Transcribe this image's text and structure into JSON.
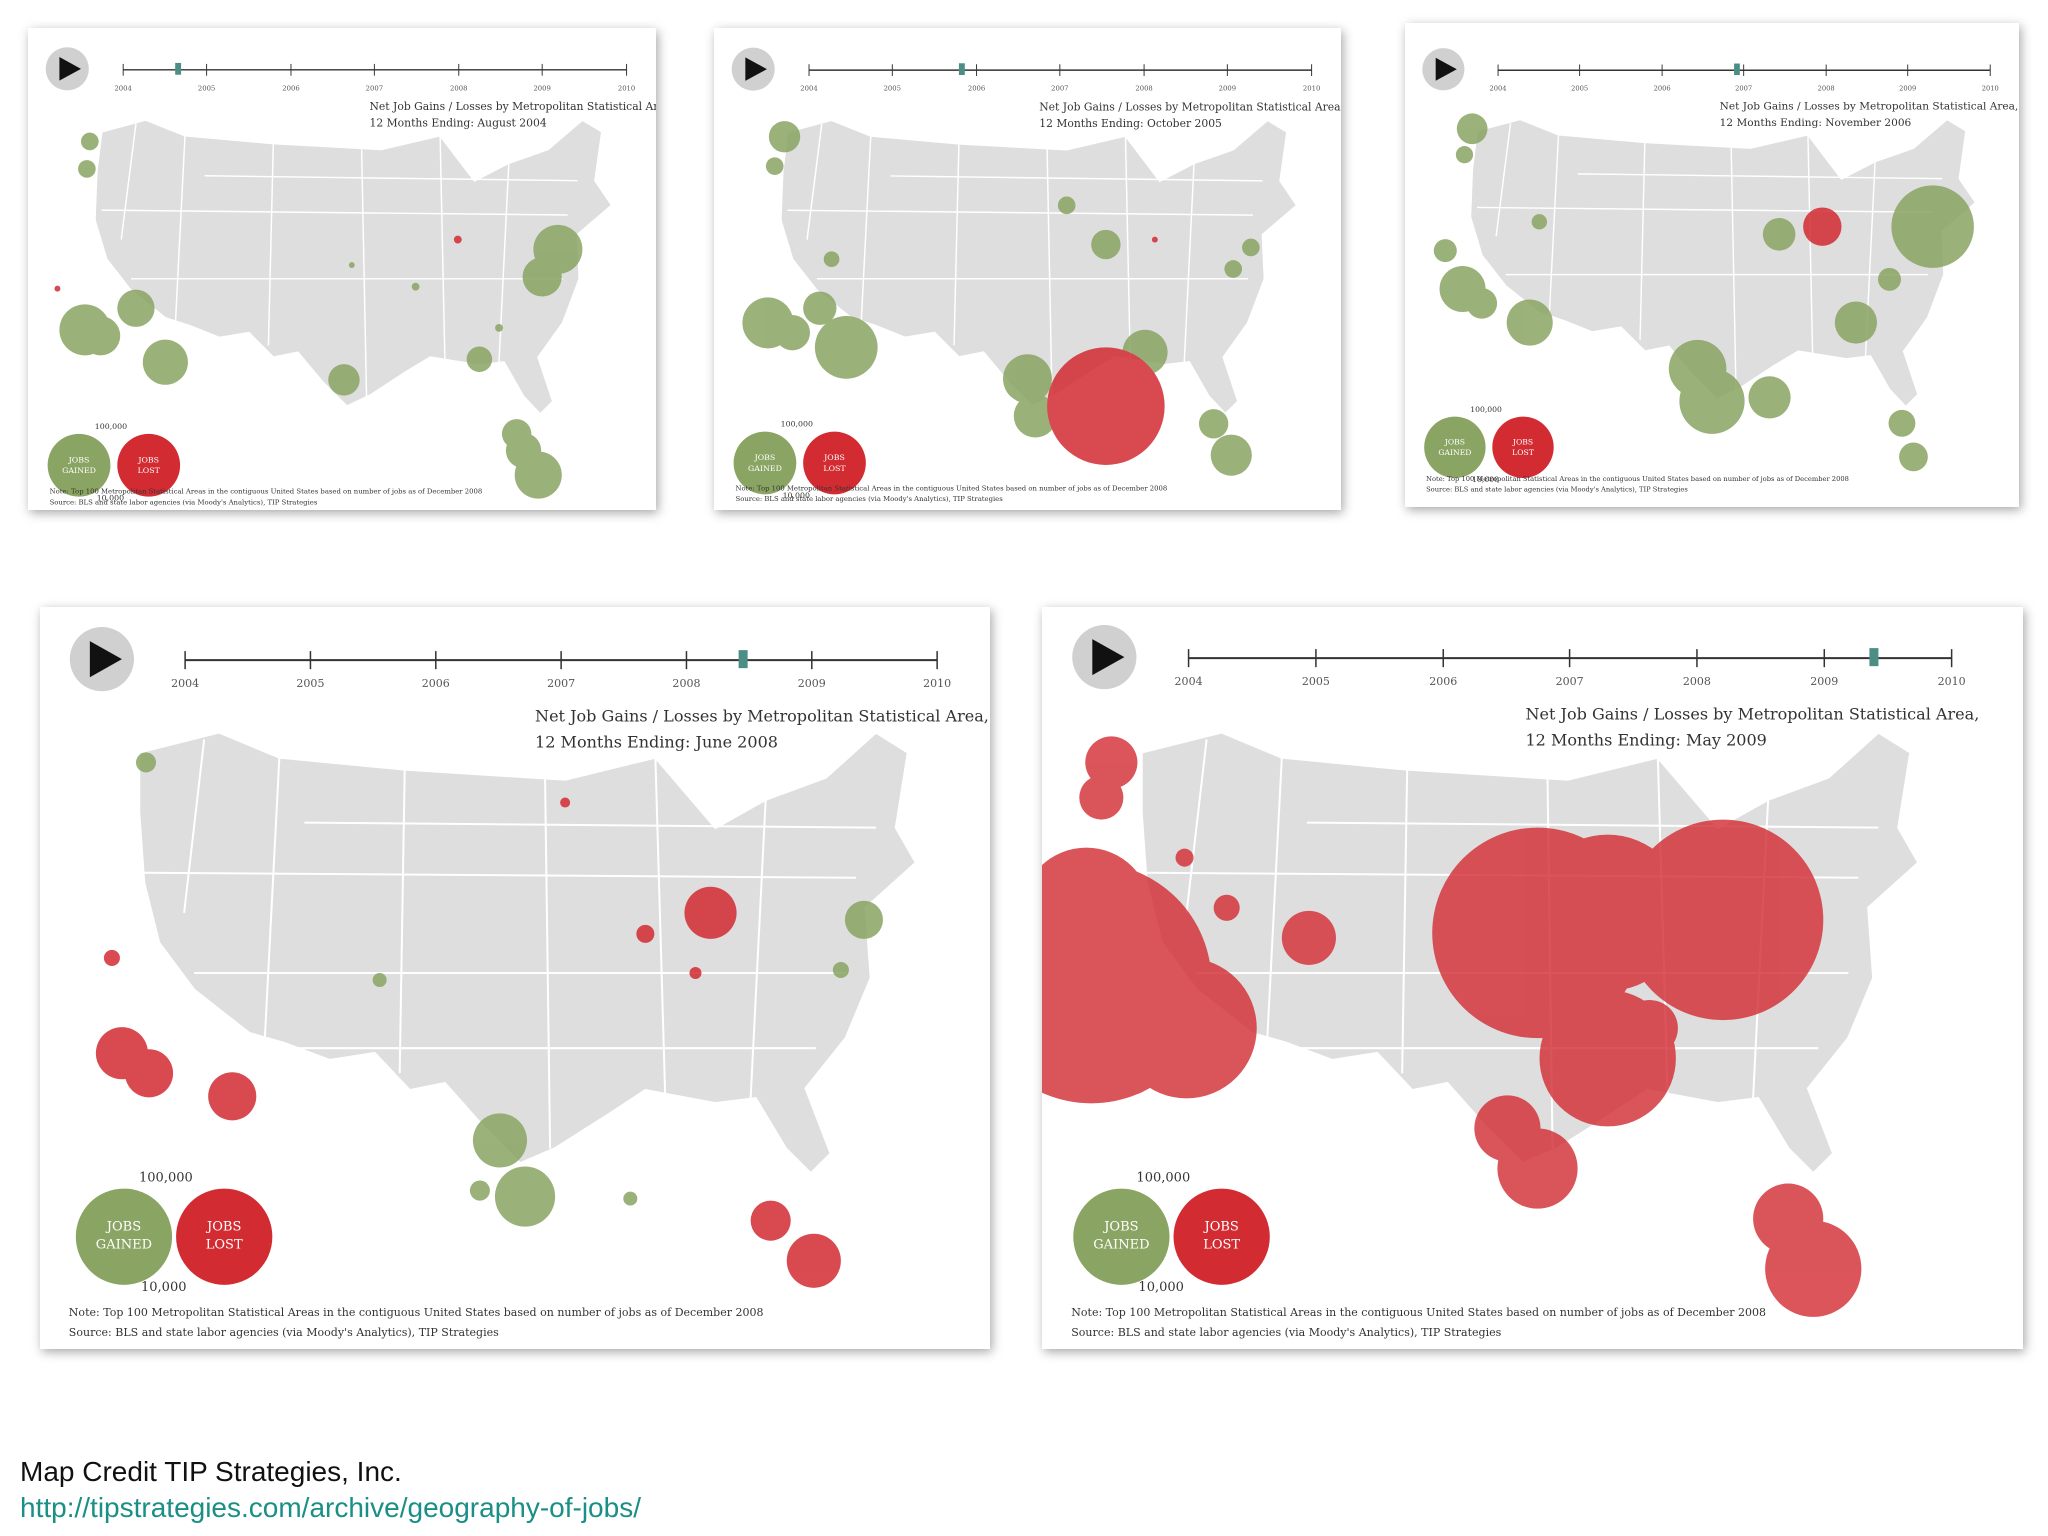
{
  "title_line1": "Net Job Gains / Losses by Metropolitan Statistical Area,",
  "timeline_years": [
    "2004",
    "2005",
    "2006",
    "2007",
    "2008",
    "2009",
    "2010"
  ],
  "legend": {
    "gained_label_1": "JOBS",
    "gained_label_2": "GAINED",
    "lost_label_1": "JOBS",
    "lost_label_2": "LOST",
    "scale_large": "100,000",
    "scale_small": "10,000"
  },
  "note": "Note: Top 100 Metropolitan Statistical Areas in the contiguous United States based on number of jobs as of December 2008",
  "source": "Source: BLS and state labor agencies (via Moody's Analytics), TIP Strategies",
  "colors": {
    "gain": "#8aa463",
    "loss": "#d22b32",
    "land": "#dedede",
    "border": "#ffffff",
    "slider": "#4c8e86"
  },
  "panels": [
    {
      "period": "12 Months Ending: August 2004",
      "timeline_value": 2004.62
    },
    {
      "period": "12 Months Ending: October 2005",
      "timeline_value": 2005.8
    },
    {
      "period": "12 Months Ending: November 2006",
      "timeline_value": 2006.88
    },
    {
      "period": "12 Months Ending: June 2008",
      "timeline_value": 2008.45
    },
    {
      "period": "12 Months Ending: May 2009",
      "timeline_value": 2009.38
    }
  ],
  "credit": {
    "text": "Map Credit TIP Strategies, Inc.",
    "url": "http://tipstrategies.com/archive/geography-of-jobs/"
  }
}
